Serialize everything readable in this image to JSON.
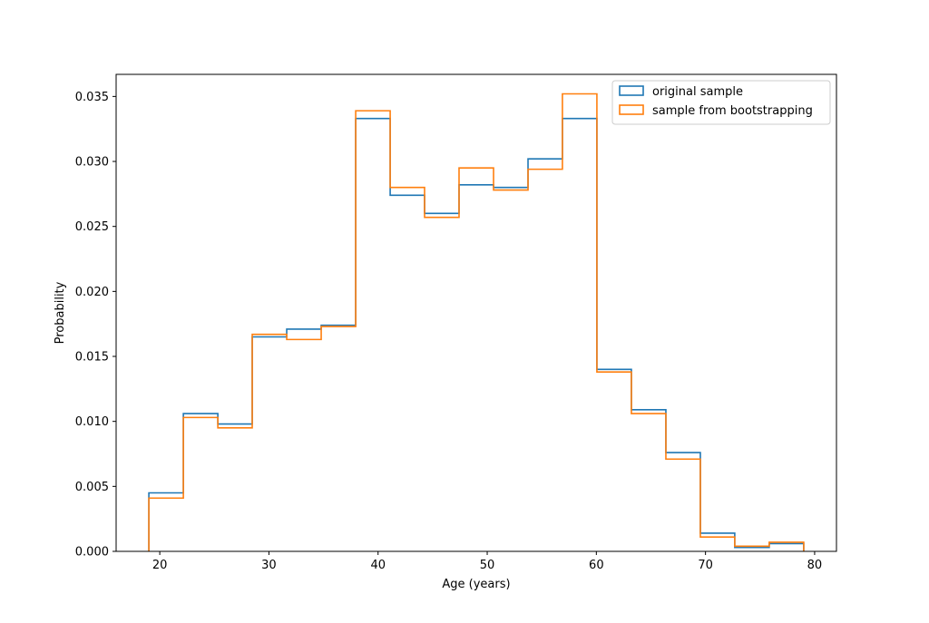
{
  "chart_data": {
    "type": "step-histogram",
    "xlabel": "Age (years)",
    "ylabel": "Probability",
    "xlim": [
      16,
      82
    ],
    "ylim": [
      0,
      0.0367
    ],
    "xticks": [
      20,
      30,
      40,
      50,
      60,
      70,
      80
    ],
    "yticks": [
      0.0,
      0.005,
      0.01,
      0.015,
      0.02,
      0.025,
      0.03,
      0.035
    ],
    "ytick_labels": [
      "0.000",
      "0.005",
      "0.010",
      "0.015",
      "0.020",
      "0.025",
      "0.030",
      "0.035"
    ],
    "bin_edges": [
      19,
      22.16,
      25.32,
      28.47,
      31.63,
      34.79,
      37.95,
      41.11,
      44.26,
      47.42,
      50.58,
      53.74,
      56.89,
      60.05,
      63.21,
      66.37,
      69.53,
      72.68,
      75.84,
      79
    ],
    "series": [
      {
        "name": "original sample",
        "color": "#1f77b4",
        "values": [
          0.0045,
          0.0106,
          0.0098,
          0.0165,
          0.0171,
          0.0174,
          0.0333,
          0.0274,
          0.026,
          0.0282,
          0.028,
          0.0302,
          0.0333,
          0.014,
          0.0109,
          0.0076,
          0.0014,
          0.0003,
          0.0006
        ]
      },
      {
        "name": "sample from bootstrapping",
        "color": "#ff7f0e",
        "values": [
          0.0041,
          0.0103,
          0.0095,
          0.0167,
          0.0163,
          0.0173,
          0.0339,
          0.028,
          0.0257,
          0.0295,
          0.0278,
          0.0294,
          0.0352,
          0.0138,
          0.0106,
          0.0071,
          0.0011,
          0.0004,
          0.0007
        ]
      }
    ],
    "legend_position": "top-right",
    "grid": false
  }
}
